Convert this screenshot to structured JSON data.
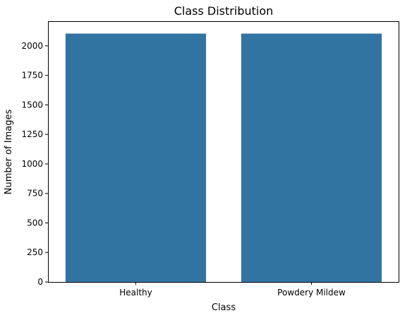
{
  "chart_data": {
    "type": "bar",
    "title": "Class Distribution",
    "xlabel": "Class",
    "ylabel": "Number of Images",
    "categories": [
      "Healthy",
      "Powdery Mildew"
    ],
    "values": [
      2104,
      2104
    ],
    "ylim": [
      0,
      2209
    ],
    "yticks": [
      0,
      250,
      500,
      750,
      1000,
      1250,
      1500,
      1750,
      2000
    ],
    "grid": false,
    "legend": "none",
    "bar_color": "#3274a1"
  }
}
